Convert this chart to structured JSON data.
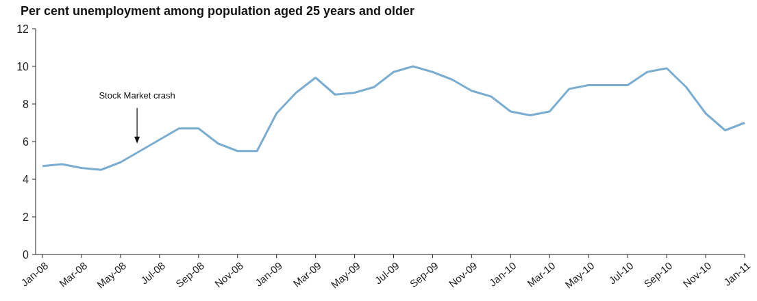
{
  "chart_data": {
    "type": "line",
    "title": "Per cent unemployment among population aged 25 years and older",
    "categories": [
      "Jan-08",
      null,
      "Mar-08",
      null,
      "May-08",
      null,
      "Jul-08",
      null,
      "Sep-08",
      null,
      "Nov-08",
      null,
      "Jan-09",
      null,
      "Mar-09",
      null,
      "May-09",
      null,
      "Jul-09",
      null,
      "Sep-09",
      null,
      "Nov-09",
      null,
      "Jan-10",
      null,
      "Mar-10",
      null,
      "May-10",
      null,
      "Jul-10",
      null,
      "Sep-10",
      null,
      "Nov-10",
      null,
      "Jan-11"
    ],
    "series": [
      {
        "color": "#7aadcf",
        "values": [
          4.7,
          4.8,
          4.6,
          4.5,
          4.9,
          5.5,
          6.1,
          6.7,
          6.7,
          5.9,
          5.5,
          5.5,
          7.5,
          8.6,
          9.4,
          8.5,
          8.6,
          8.9,
          9.7,
          10.0,
          9.7,
          9.3,
          8.7,
          8.4,
          7.6,
          7.4,
          7.6,
          8.8,
          9.0,
          9.0,
          9.0,
          9.7,
          9.9,
          8.9,
          7.5,
          6.6,
          7.0
        ]
      }
    ],
    "ylim": [
      0,
      12
    ],
    "yticks": [
      0,
      2,
      4,
      6,
      8,
      10,
      12
    ],
    "grid": false,
    "marker": "none",
    "line_style": "solid",
    "annotations": [
      "Stock Market crash"
    ]
  }
}
